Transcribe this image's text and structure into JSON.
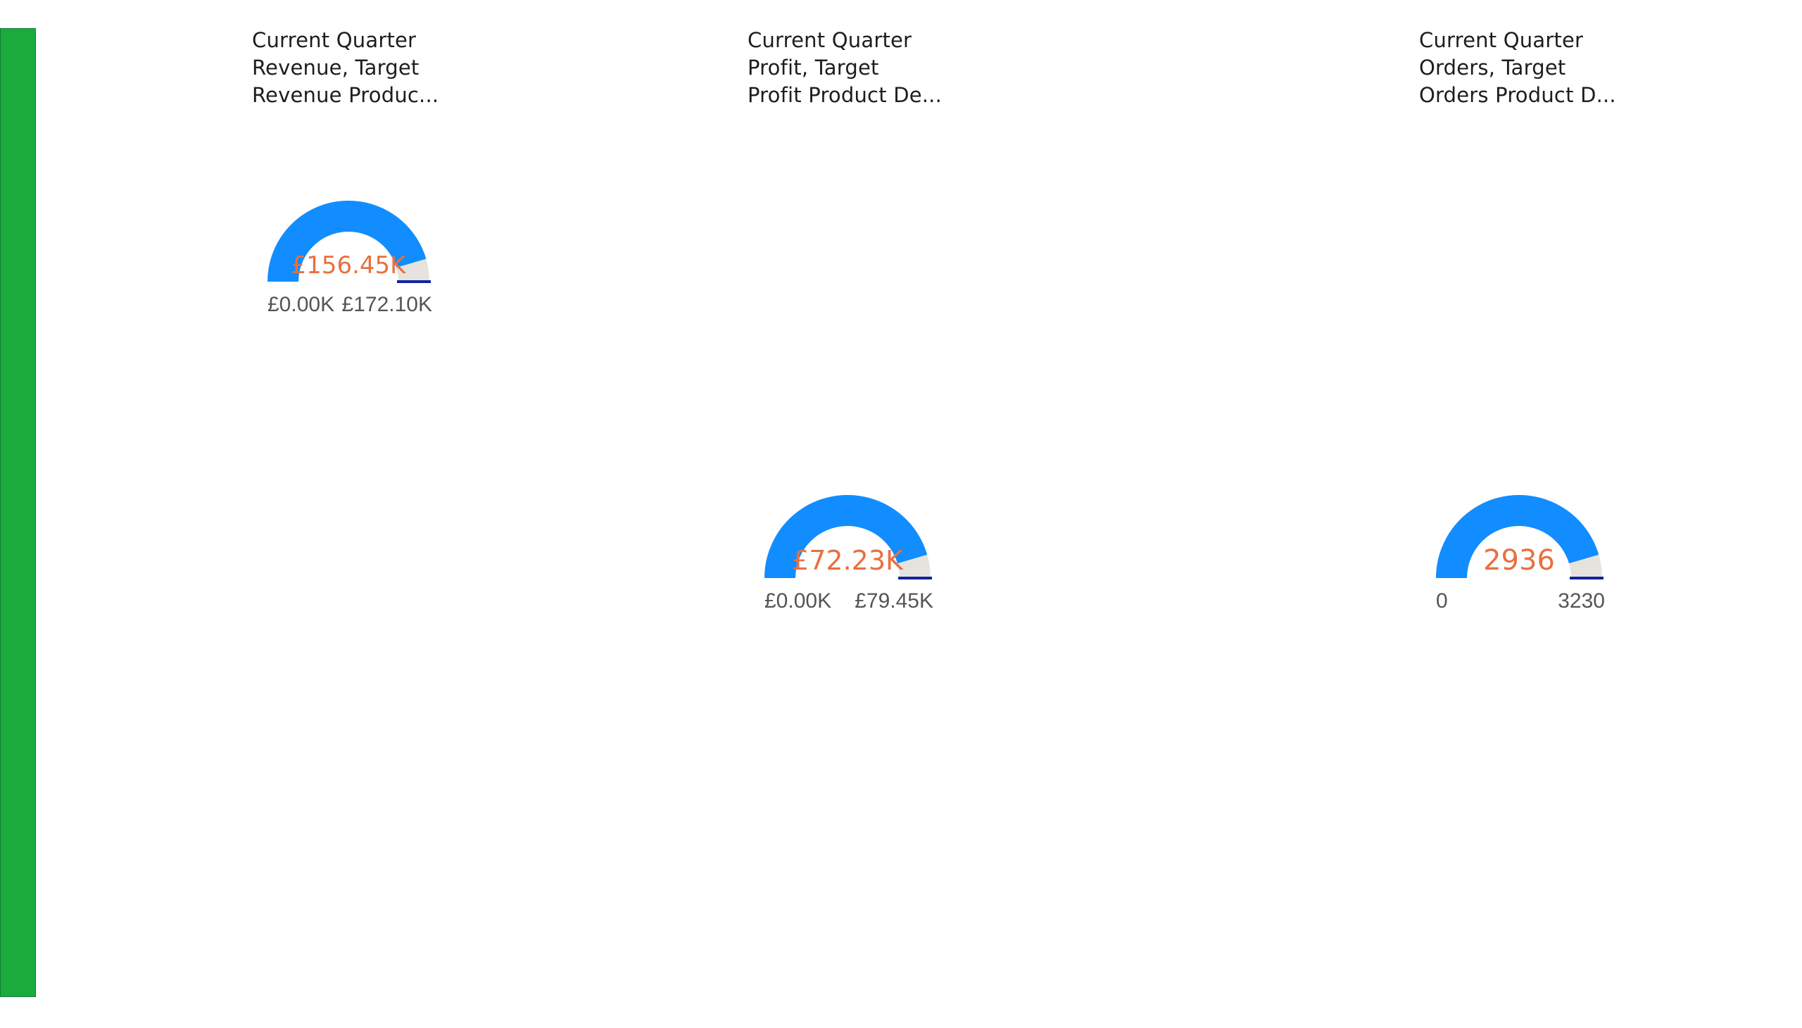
{
  "gauges": [
    {
      "title": [
        "Current Quarter",
        "Revenue, Target",
        "Revenue Produc..."
      ],
      "value": 156.45,
      "target": 172.1,
      "min": 0,
      "max": 172.1,
      "value_label": "£156.45K",
      "min_label": "£0.00K",
      "max_label": "£172.10K"
    },
    {
      "title": [
        "Current Quarter",
        "Profit, Target",
        "Profit Product De..."
      ],
      "value": 72.23,
      "target": 79.45,
      "min": 0,
      "max": 79.45,
      "value_label": "£72.23K",
      "min_label": "£0.00K",
      "max_label": "£79.45K"
    },
    {
      "title": [
        "Current Quarter",
        "Orders, Target",
        "Orders Product D..."
      ],
      "value": 2936,
      "target": 3230,
      "min": 0,
      "max": 3230,
      "value_label": "2936",
      "min_label": "0",
      "max_label": "3230"
    }
  ],
  "colors": {
    "fill": "#118dff",
    "track": "#e6e3df",
    "target": "#12239e",
    "value_text": "#e8703f",
    "sidebar": "#1aab3c"
  }
}
